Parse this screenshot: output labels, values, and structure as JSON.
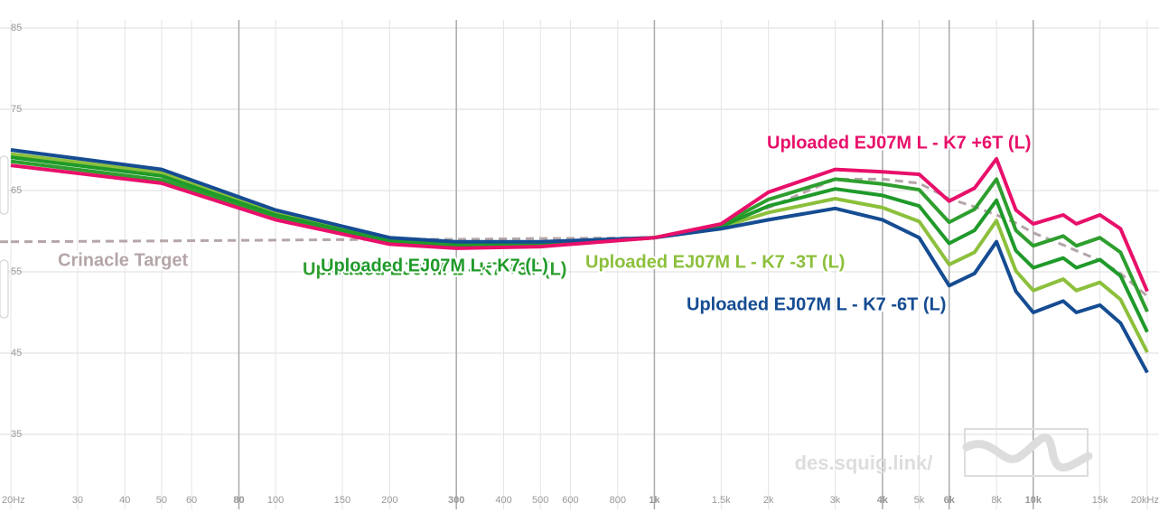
{
  "chart_data": {
    "type": "line",
    "xscale": "log",
    "grid": true,
    "x": [
      20,
      50,
      100,
      200,
      300,
      500,
      1000,
      1500,
      2000,
      3000,
      4000,
      5000,
      6000,
      7000,
      8000,
      9000,
      10000,
      12000,
      13000,
      15000,
      17000,
      20000
    ],
    "xlim": [
      20,
      20000
    ],
    "ylim": [
      28,
      86
    ],
    "yticks": [
      35,
      45,
      55,
      65,
      75,
      85
    ],
    "xticks": [
      {
        "value": 20,
        "label": "20Hz"
      },
      30,
      40,
      50,
      60,
      80,
      100,
      150,
      200,
      300,
      400,
      500,
      600,
      800,
      {
        "value": 1000,
        "label": "1k"
      },
      {
        "value": 1500,
        "label": "1.5k"
      },
      {
        "value": 2000,
        "label": "2k"
      },
      {
        "value": 3000,
        "label": "3k"
      },
      {
        "value": 4000,
        "label": "4k"
      },
      {
        "value": 5000,
        "label": "5k"
      },
      {
        "value": 6000,
        "label": "6k"
      },
      {
        "value": 8000,
        "label": "8k"
      },
      {
        "value": 10000,
        "label": "10k"
      },
      {
        "value": 15000,
        "label": "15k"
      },
      {
        "value": 20000,
        "label": "20kHz"
      }
    ],
    "major_xticks": [
      80,
      300,
      1000,
      4000,
      6000,
      10000
    ],
    "series": [
      {
        "name": "Crinacle Target",
        "color": "#b5a6a8",
        "dash": true,
        "values": [
          58.7,
          58.8,
          58.9,
          59.0,
          59.0,
          59.1,
          59.2,
          60.8,
          62.9,
          66.4,
          66.4,
          65.9,
          64.0,
          63.0,
          62.0,
          61.0,
          59.8,
          58.3,
          57.6,
          56.4,
          54.8,
          52.0
        ]
      },
      {
        "name": "Uploaded EJ07M L - K7 -3T (L)",
        "color": "#8cc03c",
        "values": [
          69.5,
          67.2,
          62.3,
          59.0,
          58.5,
          58.6,
          59.2,
          60.5,
          62.3,
          64.0,
          62.9,
          61.2,
          55.9,
          57.4,
          61.3,
          55.1,
          52.7,
          54.1,
          52.7,
          53.7,
          51.6,
          45.1
        ]
      },
      {
        "name": "Uploaded EJ07M L - K7 +3T (L)",
        "color": "#2e9e2e",
        "values": [
          68.6,
          66.3,
          61.7,
          58.6,
          58.1,
          58.3,
          59.2,
          60.8,
          63.9,
          66.4,
          65.8,
          65.1,
          61.1,
          62.7,
          66.4,
          60.1,
          58.2,
          59.4,
          58.2,
          59.2,
          57.4,
          50.1
        ]
      },
      {
        "name": "Uploaded EJ07M L - K7 (L)",
        "color": "#1f9a2a",
        "values": [
          69.1,
          66.8,
          62.0,
          58.8,
          58.3,
          58.4,
          59.2,
          60.6,
          63.1,
          65.2,
          64.4,
          63.1,
          58.5,
          60.1,
          63.8,
          57.6,
          55.5,
          56.7,
          55.5,
          56.5,
          54.5,
          47.6
        ]
      },
      {
        "name": "Uploaded EJ07M L - K7 -6T (L)",
        "color": "#154c92",
        "values": [
          70.0,
          67.6,
          62.6,
          59.2,
          58.7,
          58.7,
          59.2,
          60.3,
          61.4,
          62.8,
          61.4,
          59.2,
          53.3,
          54.8,
          58.7,
          52.6,
          50.0,
          51.4,
          50.0,
          50.9,
          48.7,
          42.6
        ]
      },
      {
        "name": "Uploaded EJ07M L - K7 +6T (L)",
        "color": "#e8106a",
        "values": [
          68.1,
          65.9,
          61.4,
          58.4,
          57.9,
          58.1,
          59.2,
          60.9,
          64.8,
          67.6,
          67.3,
          67.0,
          63.7,
          65.3,
          68.9,
          62.6,
          60.9,
          62.0,
          60.9,
          62.0,
          60.3,
          52.6
        ]
      }
    ],
    "watermark": "des.squig.link/"
  }
}
